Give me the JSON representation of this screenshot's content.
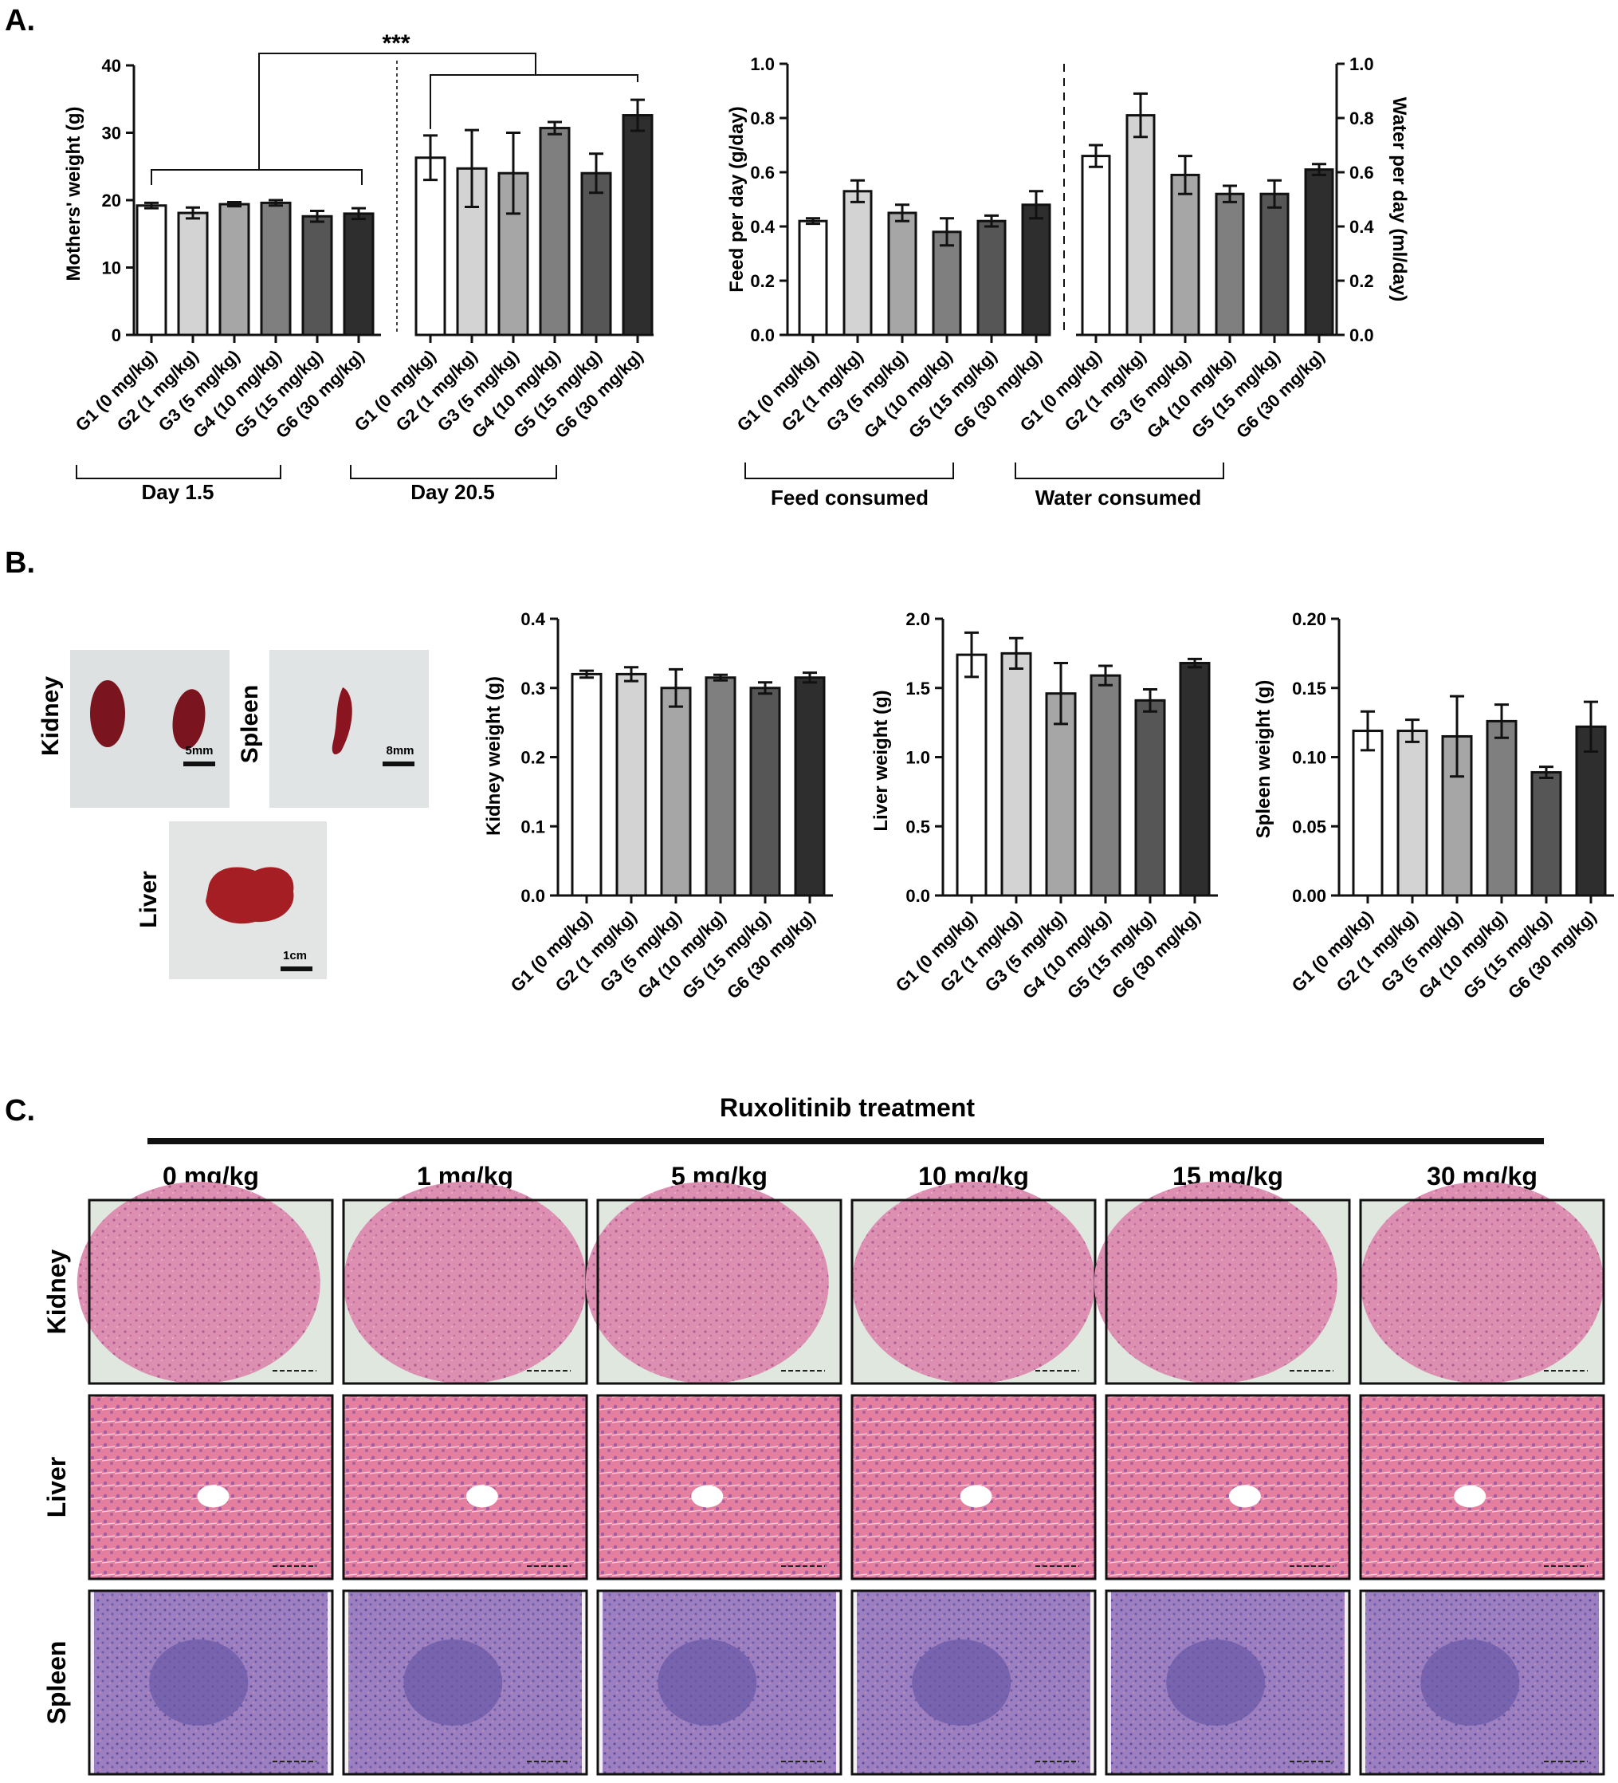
{
  "panels": {
    "a": "A.",
    "b": "B.",
    "c": "C."
  },
  "groups": [
    "G1 (0 mg/kg)",
    "G2 (1 mg/kg)",
    "G3 (5 mg/kg)",
    "G4 (10 mg/kg)",
    "G5 (15 mg/kg)",
    "G6 (30 mg/kg)"
  ],
  "colors": {
    "fills": [
      "#ffffff",
      "#d3d3d3",
      "#a6a6a6",
      "#7f7f7f",
      "#565656",
      "#2e2e2e"
    ],
    "axis": "#111111"
  },
  "chart_data": [
    {
      "id": "mothers-weight",
      "type": "bar",
      "ylabel": "Mothers' weight (g)",
      "ylim": [
        0,
        40
      ],
      "yticks": [
        "0",
        "10",
        "20",
        "30",
        "40"
      ],
      "day_labels": [
        "Day 1.5",
        "Day 20.5"
      ],
      "significance": "***",
      "series": [
        {
          "name": "Day 1.5",
          "values": [
            19.2,
            18.1,
            19.4,
            19.6,
            17.6,
            18.0
          ],
          "errors": [
            0.4,
            0.8,
            0.3,
            0.4,
            0.8,
            0.8
          ]
        },
        {
          "name": "Day 20.5",
          "values": [
            26.3,
            24.7,
            24.0,
            30.7,
            24.0,
            32.6
          ],
          "errors": [
            3.3,
            5.7,
            6.0,
            0.9,
            2.9,
            2.3
          ]
        }
      ]
    },
    {
      "id": "feed-water",
      "type": "bar",
      "ylabel_left": "Feed per day (g/day)",
      "ylabel_right": "Water per day (ml/day)",
      "ylim": [
        0,
        1.0
      ],
      "yticks": [
        "0.0",
        "0.2",
        "0.4",
        "0.6",
        "0.8",
        "1.0"
      ],
      "section_labels": [
        "Feed consumed",
        "Water consumed"
      ],
      "series": [
        {
          "name": "Feed consumed",
          "values": [
            0.42,
            0.53,
            0.45,
            0.38,
            0.42,
            0.48
          ],
          "errors": [
            0.01,
            0.04,
            0.03,
            0.05,
            0.02,
            0.05
          ]
        },
        {
          "name": "Water consumed",
          "values": [
            0.66,
            0.81,
            0.59,
            0.52,
            0.52,
            0.61
          ],
          "errors": [
            0.04,
            0.08,
            0.07,
            0.03,
            0.05,
            0.02
          ]
        }
      ]
    },
    {
      "id": "kidney-weight",
      "type": "bar",
      "ylabel": "Kidney weight (g)",
      "ylim": [
        0,
        0.4
      ],
      "yticks": [
        "0.0",
        "0.1",
        "0.2",
        "0.3",
        "0.4"
      ],
      "values": [
        0.32,
        0.32,
        0.3,
        0.315,
        0.3,
        0.315
      ],
      "errors": [
        0.005,
        0.01,
        0.027,
        0.004,
        0.008,
        0.007
      ]
    },
    {
      "id": "liver-weight",
      "type": "bar",
      "ylabel": "Liver weight (g)",
      "ylim": [
        0,
        2.0
      ],
      "yticks": [
        "0.0",
        "0.5",
        "1.0",
        "1.5",
        "2.0"
      ],
      "values": [
        1.74,
        1.75,
        1.46,
        1.59,
        1.41,
        1.68
      ],
      "errors": [
        0.16,
        0.11,
        0.22,
        0.07,
        0.08,
        0.03
      ]
    },
    {
      "id": "spleen-weight",
      "type": "bar",
      "ylabel": "Spleen weight (g)",
      "ylim": [
        0,
        0.2
      ],
      "yticks": [
        "0.00",
        "0.05",
        "0.10",
        "0.15",
        "0.20"
      ],
      "values": [
        0.119,
        0.119,
        0.115,
        0.126,
        0.089,
        0.122
      ],
      "errors": [
        0.014,
        0.008,
        0.029,
        0.012,
        0.004,
        0.018
      ]
    }
  ],
  "organ_photos": [
    {
      "label": "Kidney",
      "scale": "5mm"
    },
    {
      "label": "Spleen",
      "scale": "8mm"
    },
    {
      "label": "Liver",
      "scale": "1cm"
    }
  ],
  "histology": {
    "treatment_title": "Ruxolitinib treatment",
    "doses": [
      "0 mg/kg",
      "1 mg/kg",
      "5 mg/kg",
      "10 mg/kg",
      "15 mg/kg",
      "30 mg/kg"
    ],
    "rows": [
      "Kidney",
      "Liver",
      "Spleen"
    ]
  }
}
